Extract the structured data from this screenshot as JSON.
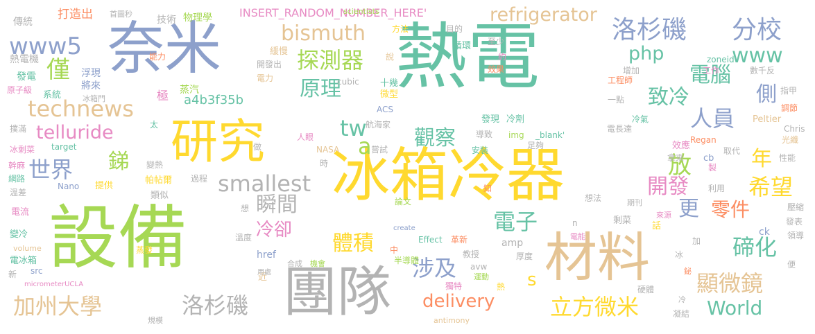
{
  "palette": {
    "green": "#66c2a5",
    "orange": "#fc8d62",
    "blue": "#8da0cb",
    "pink": "#e78ac3",
    "lime": "#a6d854",
    "yellow": "#ffd92f",
    "tan": "#e5c494",
    "gray": "#b3b3b3"
  },
  "words": [
    {
      "text": "熱電",
      "color": "green"
    },
    {
      "text": "設備",
      "color": "lime"
    },
    {
      "text": "冰箱冷器",
      "color": "yellow"
    },
    {
      "text": "奈米",
      "color": "blue"
    },
    {
      "text": "團隊",
      "color": "gray"
    },
    {
      "text": "研究",
      "color": "yellow"
    },
    {
      "text": "材料",
      "color": "tan"
    },
    {
      "text": "洛杉磯",
      "color": "blue"
    },
    {
      "text": "分校",
      "color": "blue"
    },
    {
      "text": "bismuth",
      "color": "tan"
    },
    {
      "text": "探測器",
      "color": "lime"
    },
    {
      "text": "www5",
      "color": "blue"
    },
    {
      "text": "refrigerator",
      "color": "tan"
    },
    {
      "text": "www",
      "color": "green"
    },
    {
      "text": "php",
      "color": "green"
    },
    {
      "text": "僅",
      "color": "lime"
    },
    {
      "text": "原理",
      "color": "green"
    },
    {
      "text": "電腦",
      "color": "green"
    },
    {
      "text": "致冷",
      "color": "green"
    },
    {
      "text": "technews",
      "color": "tan"
    },
    {
      "text": "telluride",
      "color": "pink"
    },
    {
      "text": "tw",
      "color": "green"
    },
    {
      "text": "a",
      "color": "lime"
    },
    {
      "text": "觀察",
      "color": "green"
    },
    {
      "text": "人員",
      "color": "blue"
    },
    {
      "text": "側",
      "color": "blue"
    },
    {
      "text": "世界",
      "color": "blue"
    },
    {
      "text": "銻",
      "color": "lime"
    },
    {
      "text": "smallest",
      "color": "gray"
    },
    {
      "text": "放",
      "color": "lime"
    },
    {
      "text": "年",
      "color": "yellow"
    },
    {
      "text": "開發",
      "color": "pink"
    },
    {
      "text": "希望",
      "color": "yellow"
    },
    {
      "text": "瞬間",
      "color": "gray"
    },
    {
      "text": "冷卻",
      "color": "pink"
    },
    {
      "text": "更",
      "color": "blue"
    },
    {
      "text": "零件",
      "color": "orange"
    },
    {
      "text": "電子",
      "color": "green"
    },
    {
      "text": "體積",
      "color": "yellow"
    },
    {
      "text": "涉及",
      "color": "blue"
    },
    {
      "text": "s",
      "color": "yellow"
    },
    {
      "text": "碲化",
      "color": "green"
    },
    {
      "text": "顯微鏡",
      "color": "tan"
    },
    {
      "text": "加州大學",
      "color": "tan"
    },
    {
      "text": "洛杉磯",
      "color": "gray"
    },
    {
      "text": "delivery",
      "color": "orange"
    },
    {
      "text": "立方微米",
      "color": "yellow"
    },
    {
      "text": "World",
      "color": "green"
    },
    {
      "text": "a4b3f35b",
      "color": "green"
    },
    {
      "text": "INSERT_RANDOM_NUMBER_HERE'",
      "color": "pink"
    },
    {
      "text": "打造出",
      "color": "orange"
    },
    {
      "text": "首圖秒",
      "color": "gray"
    },
    {
      "text": "技術",
      "color": "gray"
    },
    {
      "text": "物理學",
      "color": "lime"
    },
    {
      "text": "傳統",
      "color": "gray"
    },
    {
      "text": "熱電機",
      "color": "gray"
    },
    {
      "text": "發電",
      "color": "green"
    },
    {
      "text": "原子級",
      "color": "pink"
    },
    {
      "text": "系統",
      "color": "green"
    },
    {
      "text": "浮現",
      "color": "blue"
    },
    {
      "text": "將來",
      "color": "blue"
    },
    {
      "text": "冰箱門",
      "color": "gray"
    },
    {
      "text": "能力",
      "color": "orange"
    },
    {
      "text": "緩慢",
      "color": "tan"
    },
    {
      "text": "開發出",
      "color": "gray"
    },
    {
      "text": "電力",
      "color": "tan"
    },
    {
      "text": "極",
      "color": "pink"
    },
    {
      "text": "蒸汽",
      "color": "lime"
    },
    {
      "text": "十幾",
      "color": "green"
    },
    {
      "text": "微型",
      "color": "yellow"
    },
    {
      "text": "cubic",
      "color": "gray"
    },
    {
      "text": "ACS",
      "color": "blue"
    },
    {
      "text": "scientists",
      "color": "lime"
    },
    {
      "text": "方法",
      "color": "yellow"
    },
    {
      "text": "說",
      "color": "tan"
    },
    {
      "text": "目的",
      "color": "gray"
    },
    {
      "text": "循環",
      "color": "green"
    },
    {
      "text": "至少",
      "color": "gray"
    },
    {
      "text": "約",
      "color": "pink"
    },
    {
      "text": "效果",
      "color": "orange"
    },
    {
      "text": "工作",
      "color": "pink"
    },
    {
      "text": "zoneid",
      "color": "green"
    },
    {
      "text": "數千反",
      "color": "gray"
    },
    {
      "text": "增加",
      "color": "gray"
    },
    {
      "text": "工程師",
      "color": "orange"
    },
    {
      "text": "指甲",
      "color": "gray"
    },
    {
      "text": "一點",
      "color": "gray"
    },
    {
      "text": "冷劑",
      "color": "green"
    },
    {
      "text": "發現",
      "color": "green"
    },
    {
      "text": "調節",
      "color": "orange"
    },
    {
      "text": "冷氣",
      "color": "green"
    },
    {
      "text": "Peltier",
      "color": "tan"
    },
    {
      "text": "Chris",
      "color": "gray"
    },
    {
      "text": "光纖",
      "color": "tan"
    },
    {
      "text": "撲滿",
      "color": "gray"
    },
    {
      "text": "冰剩菜",
      "color": "pink"
    },
    {
      "text": "target",
      "color": "green"
    },
    {
      "text": "太",
      "color": "green"
    },
    {
      "text": "人眼",
      "color": "pink"
    },
    {
      "text": "航海家",
      "color": "gray"
    },
    {
      "text": "導致",
      "color": "gray"
    },
    {
      "text": "img",
      "color": "lime"
    },
    {
      "text": "_blank'",
      "color": "green"
    },
    {
      "text": "電長達",
      "color": "gray"
    },
    {
      "text": "變熱",
      "color": "gray"
    },
    {
      "text": "做",
      "color": "gray"
    },
    {
      "text": "嘗試",
      "color": "gray"
    },
    {
      "text": "安裝",
      "color": "green"
    },
    {
      "text": "足夠",
      "color": "gray"
    },
    {
      "text": "效應",
      "color": "pink"
    },
    {
      "text": "Regan",
      "color": "orange"
    },
    {
      "text": "取代",
      "color": "gray"
    },
    {
      "text": "拿來",
      "color": "gray"
    },
    {
      "text": "性能",
      "color": "gray"
    },
    {
      "text": "幹麻",
      "color": "pink"
    },
    {
      "text": "網路",
      "color": "green"
    },
    {
      "text": "溫差",
      "color": "gray"
    },
    {
      "text": "Nano",
      "color": "blue"
    },
    {
      "text": "提供",
      "color": "yellow"
    },
    {
      "text": "類似",
      "color": "gray"
    },
    {
      "text": "帕帖爾",
      "color": "yellow"
    },
    {
      "text": "過程",
      "color": "gray"
    },
    {
      "text": "NASA",
      "color": "tan"
    },
    {
      "text": "時",
      "color": "gray"
    },
    {
      "text": "知",
      "color": "orange"
    },
    {
      "text": "製",
      "color": "pink"
    },
    {
      "text": "利用",
      "color": "gray"
    },
    {
      "text": "cb",
      "color": "blue"
    },
    {
      "text": "壓縮",
      "color": "gray"
    },
    {
      "text": "電流",
      "color": "pink"
    },
    {
      "text": "想",
      "color": "gray"
    },
    {
      "text": "論文",
      "color": "lime"
    },
    {
      "text": "想法",
      "color": "gray"
    },
    {
      "text": "期刊",
      "color": "gray"
    },
    {
      "text": "話",
      "color": "yellow"
    },
    {
      "text": "剩菜",
      "color": "gray"
    },
    {
      "text": "來源",
      "color": "pink"
    },
    {
      "text": "發表",
      "color": "gray"
    },
    {
      "text": "變冷",
      "color": "green"
    },
    {
      "text": "create",
      "color": "blue"
    },
    {
      "text": "n",
      "color": "gray"
    },
    {
      "text": "溫度",
      "color": "gray"
    },
    {
      "text": "電能",
      "color": "pink"
    },
    {
      "text": "ck",
      "color": "blue"
    },
    {
      "text": "volume",
      "color": "tan"
    },
    {
      "text": "蒸發",
      "color": "yellow"
    },
    {
      "text": "Effect",
      "color": "green"
    },
    {
      "text": "革新",
      "color": "orange"
    },
    {
      "text": "amp",
      "color": "gray"
    },
    {
      "text": "加",
      "color": "gray"
    },
    {
      "text": "領導",
      "color": "gray"
    },
    {
      "text": "電冰箱",
      "color": "green"
    },
    {
      "text": "href",
      "color": "blue"
    },
    {
      "text": "中",
      "color": "orange"
    },
    {
      "text": "半導體",
      "color": "lime"
    },
    {
      "text": "教授",
      "color": "gray"
    },
    {
      "text": "冰",
      "color": "gray"
    },
    {
      "text": "src",
      "color": "blue"
    },
    {
      "text": "合成",
      "color": "gray"
    },
    {
      "text": "機會",
      "color": "lime"
    },
    {
      "text": "avw",
      "color": "gray"
    },
    {
      "text": "厚度",
      "color": "gray"
    },
    {
      "text": "便",
      "color": "gray"
    },
    {
      "text": "新",
      "color": "gray"
    },
    {
      "text": "近",
      "color": "tan"
    },
    {
      "text": "用處",
      "color": "gray"
    },
    {
      "text": "運動",
      "color": "lime"
    },
    {
      "text": "鉍",
      "color": "orange"
    },
    {
      "text": "micrometerUCLA",
      "color": "pink"
    },
    {
      "text": "獨特",
      "color": "pink"
    },
    {
      "text": "熱",
      "color": "yellow"
    },
    {
      "text": "硬體",
      "color": "gray"
    },
    {
      "text": "冷",
      "color": "gray"
    },
    {
      "text": "凝結",
      "color": "gray"
    },
    {
      "text": "antimony",
      "color": "tan"
    },
    {
      "text": "規模",
      "color": "gray"
    }
  ]
}
